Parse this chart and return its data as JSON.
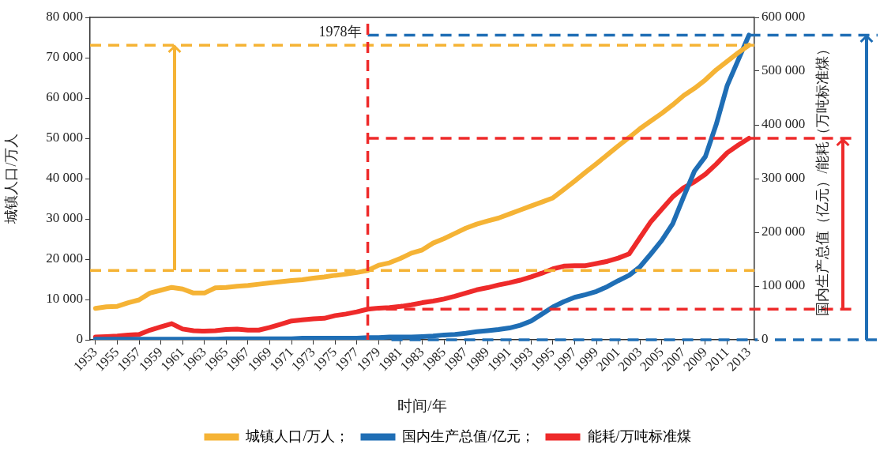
{
  "chart_data": {
    "type": "line",
    "xlabel": "时间/年",
    "ylabel": "城镇人口/万人",
    "y2label": "国内生产总值（亿元）/能耗（万吨标准煤）",
    "x": [
      1953,
      1954,
      1955,
      1956,
      1957,
      1958,
      1959,
      1960,
      1961,
      1962,
      1963,
      1964,
      1965,
      1966,
      1967,
      1968,
      1969,
      1970,
      1971,
      1972,
      1973,
      1974,
      1975,
      1976,
      1977,
      1978,
      1979,
      1980,
      1981,
      1982,
      1983,
      1984,
      1985,
      1986,
      1987,
      1988,
      1989,
      1990,
      1991,
      1992,
      1993,
      1994,
      1995,
      1996,
      1997,
      1998,
      1999,
      2000,
      2001,
      2002,
      2003,
      2004,
      2005,
      2006,
      2007,
      2008,
      2009,
      2010,
      2011,
      2012,
      2013
    ],
    "series": [
      {
        "name": "城镇人口/万人；",
        "color": "#f5b335",
        "values": [
          7800,
          8200,
          8300,
          9200,
          9900,
          11600,
          12300,
          13000,
          12600,
          11600,
          11600,
          12900,
          13000,
          13300,
          13500,
          13800,
          14100,
          14400,
          14700,
          14900,
          15300,
          15600,
          16000,
          16300,
          16700,
          17200,
          18500,
          19100,
          20200,
          21500,
          22300,
          24000,
          25100,
          26400,
          27700,
          28700,
          29500,
          30200,
          31200,
          32200,
          33200,
          34200,
          35200,
          37300,
          39400,
          41600,
          43700,
          45900,
          48100,
          50200,
          52400,
          54300,
          56200,
          58300,
          60600,
          62400,
          64500,
          67000,
          69100,
          71200,
          73100
        ]
      },
      {
        "name": "国内生产总值/亿元；",
        "color": "#1f6eb5",
        "axis": "y2",
        "values": [
          1000,
          1000,
          1000,
          1000,
          1000,
          1000,
          1000,
          1000,
          1000,
          1000,
          1000,
          1000,
          2000,
          2000,
          2000,
          2000,
          2000,
          2000,
          2000,
          3000,
          3000,
          3000,
          3000,
          3000,
          3000,
          4000,
          4000,
          5000,
          5000,
          5000,
          6000,
          7000,
          9000,
          10000,
          12000,
          15000,
          17000,
          19000,
          22000,
          27000,
          35000,
          48000,
          61000,
          71000,
          79000,
          84000,
          90000,
          99000,
          110000,
          120000,
          136000,
          160000,
          185000,
          216000,
          266000,
          314000,
          341000,
          401000,
          473000,
          520000,
          567000
        ]
      },
      {
        "name": "能耗/万吨标准煤",
        "color": "#ee2a2a",
        "axis": "y2",
        "values": [
          5000,
          6000,
          7000,
          9000,
          10000,
          18000,
          24000,
          30000,
          20000,
          17000,
          16000,
          17000,
          19000,
          20000,
          18000,
          18000,
          23000,
          29000,
          35000,
          37000,
          39000,
          40000,
          45000,
          48000,
          52000,
          57000,
          59000,
          60000,
          62000,
          65000,
          69000,
          72000,
          76000,
          81000,
          87000,
          93000,
          97000,
          102000,
          106000,
          111000,
          117000,
          124000,
          132000,
          137000,
          138000,
          138000,
          142000,
          146000,
          152000,
          160000,
          190000,
          220000,
          243000,
          266000,
          283000,
          294000,
          308000,
          327000,
          348000,
          362000,
          375000
        ]
      }
    ],
    "xlim": [
      1952.5,
      2013.5
    ],
    "xticks": [
      1953,
      1955,
      1957,
      1959,
      1961,
      1963,
      1965,
      1967,
      1969,
      1971,
      1973,
      1975,
      1977,
      1979,
      1981,
      1983,
      1985,
      1987,
      1989,
      1991,
      1993,
      1995,
      1997,
      1999,
      2001,
      2003,
      2005,
      2007,
      2009,
      2011,
      2013
    ],
    "ylim": [
      0,
      80000
    ],
    "yticks": [
      0,
      {
        "value": 10000,
        "label": "10 000"
      },
      {
        "value": 20000,
        "label": "20 000"
      },
      {
        "value": 30000,
        "label": "30 000"
      },
      {
        "value": 40000,
        "label": "40 000"
      },
      {
        "value": 50000,
        "label": "50 000"
      },
      {
        "value": 60000,
        "label": "60 000"
      },
      {
        "value": 70000,
        "label": "70 000"
      },
      {
        "value": 80000,
        "label": "80 000"
      }
    ],
    "y2lim": [
      0,
      600000
    ],
    "y2ticks": [
      0,
      {
        "value": 100000,
        "label": "100 000"
      },
      {
        "value": 200000,
        "label": "200 000"
      },
      {
        "value": 300000,
        "label": "300 000"
      },
      {
        "value": 400000,
        "label": "400 000"
      },
      {
        "value": 500000,
        "label": "500 000"
      },
      {
        "value": 600000,
        "label": "600 000"
      }
    ],
    "ref_lines": [
      {
        "axis": "x",
        "value": 1978,
        "label": "1978年",
        "color": "#ee2a2a",
        "line_style": "dashed"
      },
      {
        "axis": "y",
        "value": 73100,
        "color": "#f5b335",
        "line_style": "dashed"
      },
      {
        "axis": "y",
        "value": 17200,
        "color": "#f5b335",
        "line_style": "dashed"
      },
      {
        "axis": "y2",
        "value": 375000,
        "color": "#ee2a2a",
        "line_style": "dashed"
      },
      {
        "axis": "y2",
        "value": 57000,
        "color": "#ee2a2a",
        "line_style": "dashed"
      },
      {
        "axis": "y2",
        "value": 567000,
        "color": "#1f6eb5",
        "line_style": "dashed"
      },
      {
        "axis": "y2",
        "value": 0,
        "color": "#1f6eb5",
        "line_style": "dashed"
      }
    ],
    "grid": false,
    "legend": "bottom"
  }
}
